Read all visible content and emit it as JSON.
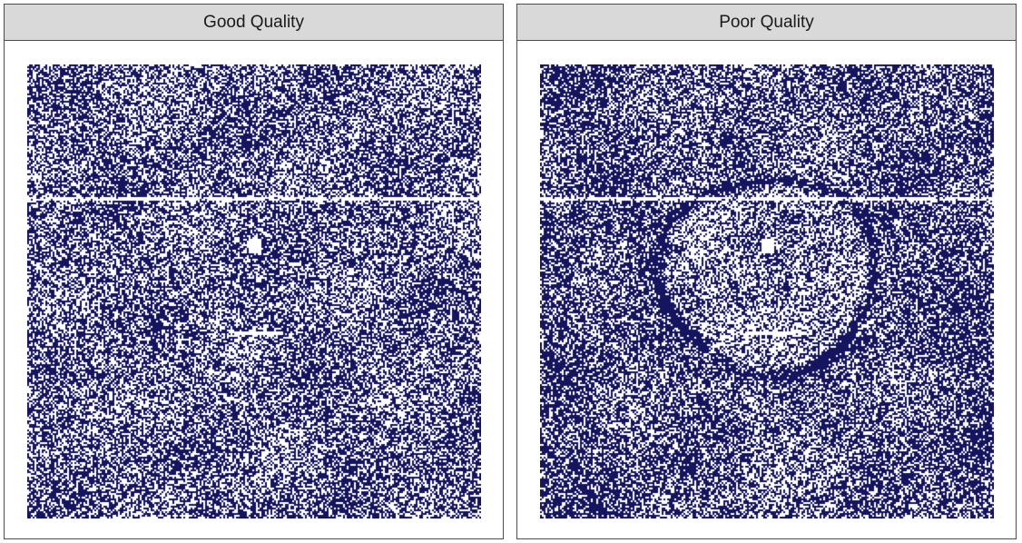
{
  "chart_data": [
    {
      "type": "heatmap",
      "title": "Good Quality",
      "xlabel": "",
      "ylabel": "",
      "grid": false,
      "color": "#14145f",
      "background": "#ffffff",
      "density": 0.58,
      "features": {
        "ring": false,
        "white_square": true,
        "horizontal_white_line": true,
        "short_white_bar": true
      }
    },
    {
      "type": "heatmap",
      "title": "Poor Quality",
      "xlabel": "",
      "ylabel": "",
      "grid": false,
      "color": "#14145f",
      "background": "#ffffff",
      "density": 0.56,
      "features": {
        "ring": true,
        "white_square": true,
        "horizontal_white_line": true,
        "short_white_bar": true
      }
    }
  ]
}
